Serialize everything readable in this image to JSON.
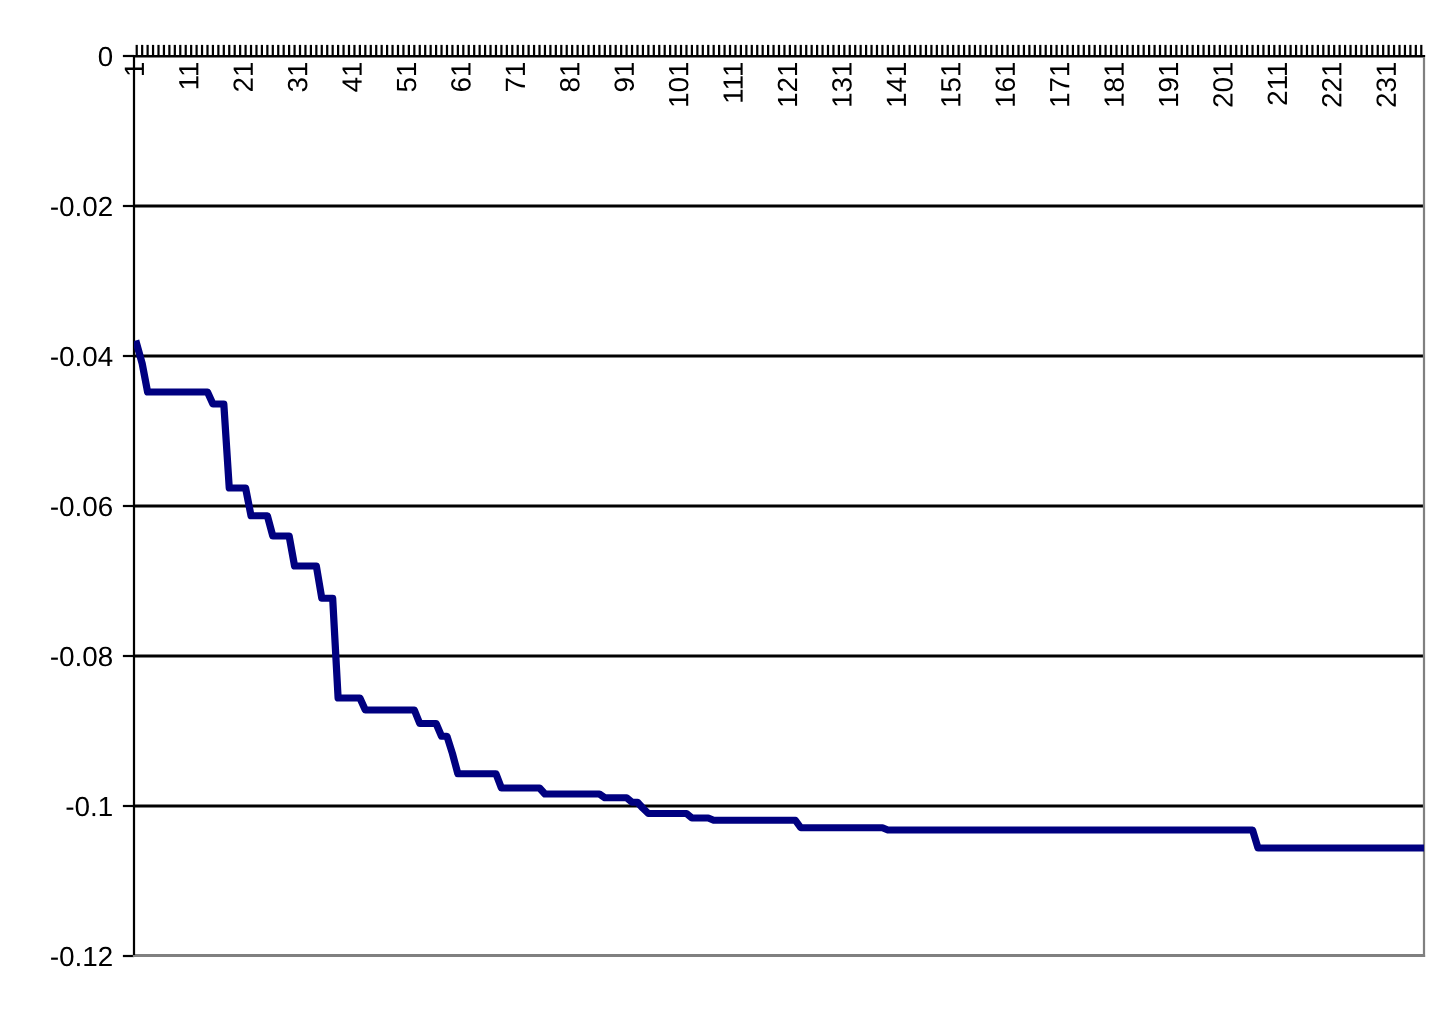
{
  "chart_data": {
    "type": "line",
    "categories": [
      "1",
      null,
      null,
      null,
      null,
      null,
      null,
      null,
      null,
      null,
      "11",
      null,
      null,
      null,
      null,
      null,
      null,
      null,
      null,
      null,
      "21",
      null,
      null,
      null,
      null,
      null,
      null,
      null,
      null,
      null,
      "31",
      null,
      null,
      null,
      null,
      null,
      null,
      null,
      null,
      null,
      "41",
      null,
      null,
      null,
      null,
      null,
      null,
      null,
      null,
      null,
      "51",
      null,
      null,
      null,
      null,
      null,
      null,
      null,
      null,
      null,
      "61",
      null,
      null,
      null,
      null,
      null,
      null,
      null,
      null,
      null,
      "71",
      null,
      null,
      null,
      null,
      null,
      null,
      null,
      null,
      null,
      "81",
      null,
      null,
      null,
      null,
      null,
      null,
      null,
      null,
      null,
      "91",
      null,
      null,
      null,
      null,
      null,
      null,
      null,
      null,
      null,
      "101",
      null,
      null,
      null,
      null,
      null,
      null,
      null,
      null,
      null,
      "111",
      null,
      null,
      null,
      null,
      null,
      null,
      null,
      null,
      null,
      "121",
      null,
      null,
      null,
      null,
      null,
      null,
      null,
      null,
      null,
      "131",
      null,
      null,
      null,
      null,
      null,
      null,
      null,
      null,
      null,
      "141",
      null,
      null,
      null,
      null,
      null,
      null,
      null,
      null,
      null,
      "151",
      null,
      null,
      null,
      null,
      null,
      null,
      null,
      null,
      null,
      "161",
      null,
      null,
      null,
      null,
      null,
      null,
      null,
      null,
      null,
      "171",
      null,
      null,
      null,
      null,
      null,
      null,
      null,
      null,
      null,
      "181",
      null,
      null,
      null,
      null,
      null,
      null,
      null,
      null,
      null,
      "191",
      null,
      null,
      null,
      null,
      null,
      null,
      null,
      null,
      null,
      "201",
      null,
      null,
      null,
      null,
      null,
      null,
      null,
      null,
      null,
      "211",
      null,
      null,
      null,
      null,
      null,
      null,
      null,
      null,
      null,
      "221",
      null,
      null,
      null,
      null,
      null,
      null,
      null,
      null,
      null,
      "231",
      null,
      null,
      null,
      null,
      null,
      null
    ],
    "series": [
      {
        "color": "#000080",
        "values": [
          -0.0384,
          -0.041,
          -0.0448,
          -0.0448,
          -0.0448,
          -0.0448,
          -0.0448,
          -0.0448,
          -0.0448,
          -0.0448,
          -0.0448,
          -0.0448,
          -0.0448,
          -0.0448,
          -0.0464,
          -0.0464,
          -0.0464,
          -0.0576,
          -0.0576,
          -0.0576,
          -0.0576,
          -0.0613,
          -0.0613,
          -0.0613,
          -0.0613,
          -0.064,
          -0.064,
          -0.064,
          -0.064,
          -0.068,
          -0.068,
          -0.068,
          -0.068,
          -0.068,
          -0.0723,
          -0.0723,
          -0.0723,
          -0.0856,
          -0.0856,
          -0.0856,
          -0.0856,
          -0.0856,
          -0.0872,
          -0.0872,
          -0.0872,
          -0.0872,
          -0.0872,
          -0.0872,
          -0.0872,
          -0.0872,
          -0.0872,
          -0.0872,
          -0.089,
          -0.089,
          -0.089,
          -0.089,
          -0.0907,
          -0.0907,
          -0.093,
          -0.0957,
          -0.0957,
          -0.0957,
          -0.0957,
          -0.0957,
          -0.0957,
          -0.0957,
          -0.0957,
          -0.0976,
          -0.0976,
          -0.0976,
          -0.0976,
          -0.0976,
          -0.0976,
          -0.0976,
          -0.0976,
          -0.0984,
          -0.0984,
          -0.0984,
          -0.0984,
          -0.0984,
          -0.0984,
          -0.0984,
          -0.0984,
          -0.0984,
          -0.0984,
          -0.0984,
          -0.0989,
          -0.0989,
          -0.0989,
          -0.0989,
          -0.0989,
          -0.0995,
          -0.0995,
          -0.1003,
          -0.101,
          -0.101,
          -0.101,
          -0.101,
          -0.101,
          -0.101,
          -0.101,
          -0.101,
          -0.1016,
          -0.1016,
          -0.1016,
          -0.1016,
          -0.1019,
          -0.1019,
          -0.1019,
          -0.1019,
          -0.1019,
          -0.1019,
          -0.1019,
          -0.1019,
          -0.1019,
          -0.1019,
          -0.1019,
          -0.1019,
          -0.1019,
          -0.1019,
          -0.1019,
          -0.1019,
          -0.1029,
          -0.1029,
          -0.1029,
          -0.1029,
          -0.1029,
          -0.1029,
          -0.1029,
          -0.1029,
          -0.1029,
          -0.1029,
          -0.1029,
          -0.1029,
          -0.1029,
          -0.1029,
          -0.1029,
          -0.1029,
          -0.1032,
          -0.1032,
          -0.1032,
          -0.1032,
          -0.1032,
          -0.1032,
          -0.1032,
          -0.1032,
          -0.1032,
          -0.1032,
          -0.1032,
          -0.1032,
          -0.1032,
          -0.1032,
          -0.1032,
          -0.1032,
          -0.1032,
          -0.1032,
          -0.1032,
          -0.1032,
          -0.1032,
          -0.1032,
          -0.1032,
          -0.1032,
          -0.1032,
          -0.1032,
          -0.1032,
          -0.1032,
          -0.1032,
          -0.1032,
          -0.1032,
          -0.1032,
          -0.1032,
          -0.1032,
          -0.1032,
          -0.1032,
          -0.1032,
          -0.1032,
          -0.1032,
          -0.1032,
          -0.1032,
          -0.1032,
          -0.1032,
          -0.1032,
          -0.1032,
          -0.1032,
          -0.1032,
          -0.1032,
          -0.1032,
          -0.1032,
          -0.1032,
          -0.1032,
          -0.1032,
          -0.1032,
          -0.1032,
          -0.1032,
          -0.1032,
          -0.1032,
          -0.1032,
          -0.1032,
          -0.1032,
          -0.1032,
          -0.1032,
          -0.1032,
          -0.1032,
          -0.1032,
          -0.1032,
          -0.1032,
          -0.1056,
          -0.1056,
          -0.1056,
          -0.1056,
          -0.1056,
          -0.1056,
          -0.1056,
          -0.1056,
          -0.1056,
          -0.1056,
          -0.1056,
          -0.1056,
          -0.1056,
          -0.1056,
          -0.1056,
          -0.1056,
          -0.1056,
          -0.1056,
          -0.1056,
          -0.1056,
          -0.1056,
          -0.1056,
          -0.1056,
          -0.1056,
          -0.1056,
          -0.1056,
          -0.1056,
          -0.1056,
          -0.1056,
          -0.1056,
          -0.1056
        ]
      }
    ],
    "ylim": [
      -0.12,
      0
    ],
    "yticks": [
      0,
      -0.02,
      -0.04,
      -0.06,
      -0.08,
      -0.1,
      -0.12
    ],
    "grid": "y",
    "marker": "none",
    "line_style": "solid"
  }
}
